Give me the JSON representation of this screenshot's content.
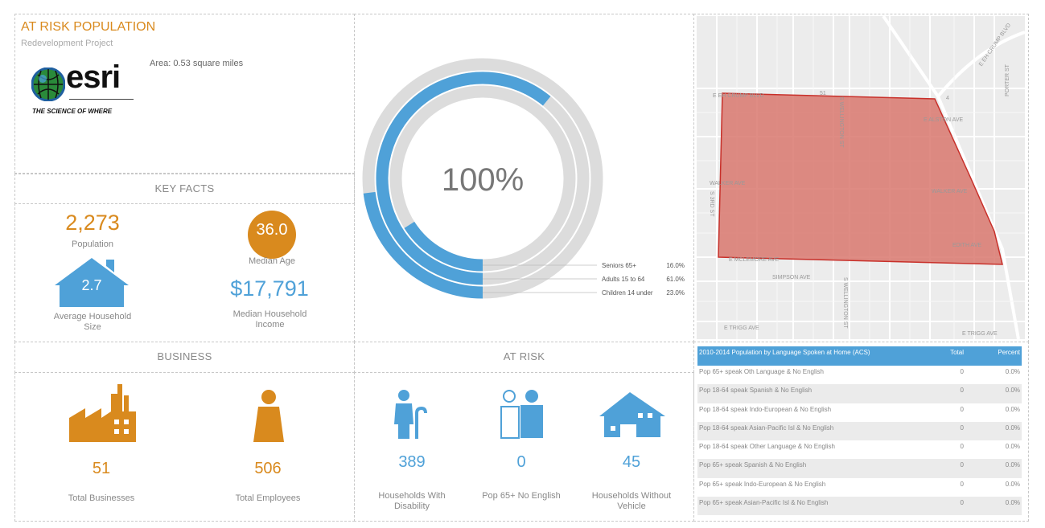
{
  "header": {
    "title": "AT RISK POPULATION",
    "subtitle": "Redevelopment Project",
    "area": "Area: 0.53 square miles",
    "logo_text": "esri",
    "logo_tagline": "THE SCIENCE OF WHERE"
  },
  "key_facts": {
    "title": "KEY FACTS",
    "population": "2,273",
    "population_label": "Population",
    "median_age": "36.0",
    "median_age_label": "Median Age",
    "household_size": "2.7",
    "household_size_label": "Average Household Size",
    "income": "$17,791",
    "income_label": "Median Household Income"
  },
  "chart_data": {
    "type": "radial-bar",
    "center_label": "100%",
    "series": [
      {
        "name": "Seniors 65+",
        "value": 16.0,
        "label": "16.0%"
      },
      {
        "name": "Adults 15 to 64",
        "value": 61.0,
        "label": "61.0%"
      },
      {
        "name": "Children 14 under",
        "value": 23.0,
        "label": "23.0%"
      }
    ],
    "max": 100,
    "colors": {
      "fill": "#4fa1d8",
      "track": "#dcdcdc"
    }
  },
  "map": {
    "labels": [
      "E EH CRUMP BLVD",
      "E ALSTON AVE",
      "WALKER AVE",
      "WALKER AVE",
      "EDITH AVE",
      "E MCLEMORE AVE",
      "SIMPSON AVE",
      "S WELLINGTON ST",
      "S WELLINGTON ST",
      "E TRIGG AVE",
      "E TRIGG AVE",
      "PORTER ST",
      "S 3RD ST",
      "E EH CRUMP BLVD",
      "51",
      "4"
    ],
    "polygon_color": "#d9786e"
  },
  "business": {
    "title": "BUSINESS",
    "total_businesses": "51",
    "total_businesses_label": "Total Businesses",
    "total_employees": "506",
    "total_employees_label": "Total Employees"
  },
  "at_risk": {
    "title": "AT RISK",
    "disability": "389",
    "disability_label": "Households With Disability",
    "no_english": "0",
    "no_english_label": "Pop 65+ No English",
    "no_vehicle": "45",
    "no_vehicle_label": "Households Without Vehicle"
  },
  "language_table": {
    "headers": [
      "2010-2014 Population by Language Spoken at Home (ACS)",
      "Total",
      "Percent"
    ],
    "rows": [
      [
        "Pop 65+ speak Oth Language & No English",
        "0",
        "0.0%"
      ],
      [
        "Pop 18-64 speak Spanish & No English",
        "0",
        "0.0%"
      ],
      [
        "Pop 18-64 speak Indo-European & No English",
        "0",
        "0.0%"
      ],
      [
        "Pop 18-64 speak Asian-Pacific Isl & No English",
        "0",
        "0.0%"
      ],
      [
        "Pop 18-64 speak Other Language & No English",
        "0",
        "0.0%"
      ],
      [
        "Pop 65+ speak Spanish & No English",
        "0",
        "0.0%"
      ],
      [
        "Pop 65+ speak Indo-European & No English",
        "0",
        "0.0%"
      ],
      [
        "Pop 65+ speak Asian-Pacific Isl & No English",
        "0",
        "0.0%"
      ]
    ]
  },
  "colors": {
    "orange": "#d98a1e",
    "blue": "#4fa1d8"
  }
}
